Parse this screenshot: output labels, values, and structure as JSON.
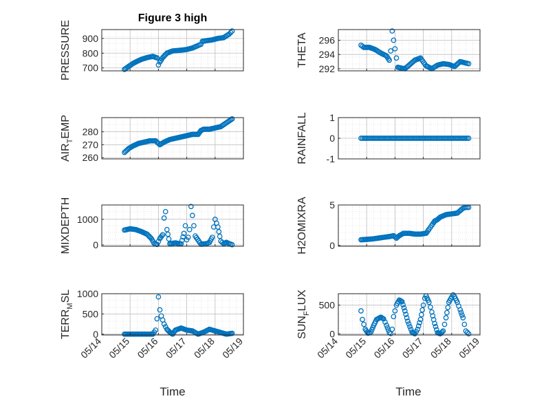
{
  "figure_title": "Figure 3 high",
  "marker_color": "#0072BD",
  "chart_data": [
    {
      "type": "scatter",
      "id": "pressure",
      "ylabel": "PRESSURE",
      "title": "Figure 3 high",
      "xlim": [
        "05/14",
        "05/19"
      ],
      "ylim": [
        680,
        960
      ],
      "yticks": [
        700,
        800,
        900
      ],
      "x_dates": [
        "05/14",
        "05/15",
        "05/16",
        "05/17",
        "05/18",
        "05/19"
      ],
      "grid": true,
      "x": [
        0.8,
        0.95,
        1.1,
        1.25,
        1.4,
        1.6,
        1.8,
        1.95,
        2.0,
        2.05,
        2.15,
        2.3,
        2.5,
        2.8,
        3.0,
        3.2,
        3.5,
        3.55,
        3.7,
        3.9,
        4.1,
        4.3,
        4.5,
        4.6
      ],
      "y": [
        690,
        710,
        730,
        745,
        758,
        770,
        778,
        768,
        720,
        740,
        770,
        800,
        815,
        820,
        825,
        835,
        860,
        880,
        885,
        890,
        900,
        905,
        930,
        950
      ]
    },
    {
      "type": "scatter",
      "id": "theta",
      "ylabel": "THETA",
      "xlim": [
        "05/14",
        "05/19"
      ],
      "ylim": [
        291.7,
        297.5
      ],
      "yticks": [
        292,
        294,
        296
      ],
      "x_dates": [
        "05/14",
        "05/15",
        "05/16",
        "05/17",
        "05/18",
        "05/19"
      ],
      "grid": true,
      "x": [
        0.8,
        0.9,
        1.1,
        1.3,
        1.5,
        1.7,
        1.8,
        1.85,
        1.9,
        1.95,
        2.0,
        2.05,
        2.1,
        2.2,
        2.35,
        2.5,
        2.7,
        2.9,
        3.1,
        3.3,
        3.5,
        3.7,
        3.9,
        4.1,
        4.3,
        4.5,
        4.6
      ],
      "y": [
        295.3,
        295.0,
        295.0,
        294.7,
        294.2,
        293.8,
        293.2,
        294.5,
        297.3,
        296.0,
        294.8,
        293.5,
        292.2,
        292.1,
        292.0,
        292.5,
        293.2,
        293.5,
        292.4,
        292.0,
        292.5,
        292.7,
        292.6,
        292.3,
        293.0,
        292.8,
        292.7
      ]
    },
    {
      "type": "scatter",
      "id": "air_temp",
      "ylabel": "AIR_TEMP",
      "xlim": [
        "05/14",
        "05/19"
      ],
      "ylim": [
        259,
        291
      ],
      "yticks": [
        260,
        270,
        280
      ],
      "x_dates": [
        "05/14",
        "05/15",
        "05/16",
        "05/17",
        "05/18",
        "05/19"
      ],
      "grid": true,
      "x": [
        0.8,
        0.95,
        1.1,
        1.3,
        1.5,
        1.7,
        1.9,
        2.05,
        2.2,
        2.4,
        2.6,
        2.8,
        3.0,
        3.2,
        3.4,
        3.5,
        3.6,
        3.8,
        4.0,
        4.2,
        4.4,
        4.6
      ],
      "y": [
        264,
        267,
        269,
        271,
        272,
        273,
        273,
        270,
        272,
        274,
        275,
        276,
        277,
        278,
        278,
        281,
        282,
        282,
        283,
        284,
        287,
        290
      ]
    },
    {
      "type": "scatter",
      "id": "rainfall",
      "ylabel": "RAINFALL",
      "xlim": [
        "05/14",
        "05/19"
      ],
      "ylim": [
        -1,
        1
      ],
      "yticks": [
        -1,
        0,
        1
      ],
      "x_dates": [
        "05/14",
        "05/15",
        "05/16",
        "05/17",
        "05/18",
        "05/19"
      ],
      "grid": true,
      "x_range": [
        0.8,
        4.6
      ],
      "y_constant": 0
    },
    {
      "type": "scatter",
      "id": "mixdepth",
      "ylabel": "MIXDEPTH",
      "xlim": [
        "05/14",
        "05/19"
      ],
      "ylim": [
        -50,
        1560
      ],
      "yticks": [
        0,
        1000
      ],
      "x_dates": [
        "05/14",
        "05/15",
        "05/16",
        "05/17",
        "05/18",
        "05/19"
      ],
      "grid": true,
      "x": [
        0.8,
        1.0,
        1.2,
        1.4,
        1.6,
        1.75,
        1.85,
        1.95,
        2.05,
        2.15,
        2.2,
        2.25,
        2.3,
        2.4,
        2.6,
        2.8,
        2.9,
        2.95,
        3.0,
        3.05,
        3.1,
        3.15,
        3.2,
        3.3,
        3.5,
        3.7,
        3.8,
        3.9,
        3.95,
        4.0,
        4.1,
        4.2,
        4.3,
        4.4,
        4.5,
        4.6
      ],
      "y": [
        580,
        630,
        600,
        520,
        420,
        250,
        60,
        20,
        250,
        400,
        1050,
        1300,
        600,
        50,
        80,
        40,
        450,
        750,
        200,
        300,
        600,
        1500,
        1150,
        350,
        30,
        50,
        100,
        300,
        700,
        1000,
        700,
        150,
        50,
        100,
        50,
        10
      ]
    },
    {
      "type": "scatter",
      "id": "h2omixra",
      "ylabel": "H2OMIXRA",
      "xlim": [
        "05/14",
        "05/19"
      ],
      "ylim": [
        -0.1,
        5
      ],
      "yticks": [
        0,
        5
      ],
      "x_dates": [
        "05/14",
        "05/15",
        "05/16",
        "05/17",
        "05/18",
        "05/19"
      ],
      "grid": true,
      "x": [
        0.8,
        1.0,
        1.2,
        1.4,
        1.6,
        1.8,
        1.95,
        2.05,
        2.15,
        2.3,
        2.5,
        2.7,
        2.9,
        3.1,
        3.2,
        3.3,
        3.4,
        3.5,
        3.6,
        3.8,
        4.0,
        4.2,
        4.3,
        4.4,
        4.5,
        4.6
      ],
      "y": [
        0.7,
        0.75,
        0.8,
        0.9,
        1.0,
        1.1,
        1.2,
        0.9,
        1.2,
        1.5,
        1.5,
        1.4,
        1.4,
        1.5,
        2.0,
        2.5,
        3.0,
        3.2,
        3.5,
        3.8,
        3.9,
        4.0,
        4.3,
        4.6,
        4.7,
        4.7
      ]
    },
    {
      "type": "scatter",
      "id": "terr_msl",
      "ylabel": "TERR_MSL",
      "xlim": [
        "05/14",
        "05/19"
      ],
      "ylim": [
        -20,
        1000
      ],
      "yticks": [
        0,
        500,
        1000
      ],
      "x_dates": [
        "05/14",
        "05/15",
        "05/16",
        "05/17",
        "05/18",
        "05/19"
      ],
      "grid": true,
      "x": [
        0.8,
        1.0,
        1.2,
        1.4,
        1.6,
        1.8,
        1.9,
        1.95,
        2.0,
        2.05,
        2.1,
        2.15,
        2.2,
        2.3,
        2.4,
        2.5,
        2.6,
        2.8,
        3.0,
        3.2,
        3.4,
        3.6,
        3.8,
        4.0,
        4.2,
        4.4,
        4.6
      ],
      "y": [
        0,
        0,
        0,
        0,
        0,
        0,
        100,
        380,
        920,
        600,
        450,
        350,
        250,
        120,
        50,
        0,
        100,
        150,
        100,
        80,
        0,
        50,
        120,
        80,
        40,
        0,
        20
      ]
    },
    {
      "type": "scatter",
      "id": "sun_flux",
      "ylabel": "SUN_FLUX",
      "xlim": [
        "05/14",
        "05/19"
      ],
      "ylim": [
        -20,
        700
      ],
      "yticks": [
        0,
        500
      ],
      "x_dates": [
        "05/14",
        "05/15",
        "05/16",
        "05/17",
        "05/18",
        "05/19"
      ],
      "grid": true,
      "x": [
        0.8,
        0.85,
        0.95,
        1.05,
        1.15,
        1.25,
        1.35,
        1.5,
        1.6,
        1.7,
        1.8,
        1.85,
        1.9,
        1.95,
        2.05,
        2.15,
        2.25,
        2.35,
        2.45,
        2.6,
        2.7,
        2.8,
        2.9,
        3.0,
        3.05,
        3.1,
        3.2,
        3.3,
        3.4,
        3.5,
        3.6,
        3.7,
        3.8,
        3.9,
        4.0,
        4.05,
        4.1,
        4.2,
        4.3,
        4.4,
        4.5,
        4.6
      ],
      "y": [
        400,
        250,
        80,
        10,
        30,
        150,
        250,
        290,
        260,
        150,
        20,
        5,
        80,
        300,
        500,
        590,
        560,
        400,
        220,
        30,
        0,
        80,
        250,
        500,
        620,
        660,
        550,
        380,
        180,
        20,
        0,
        50,
        280,
        550,
        640,
        680,
        650,
        550,
        420,
        280,
        50,
        0
      ]
    }
  ]
}
